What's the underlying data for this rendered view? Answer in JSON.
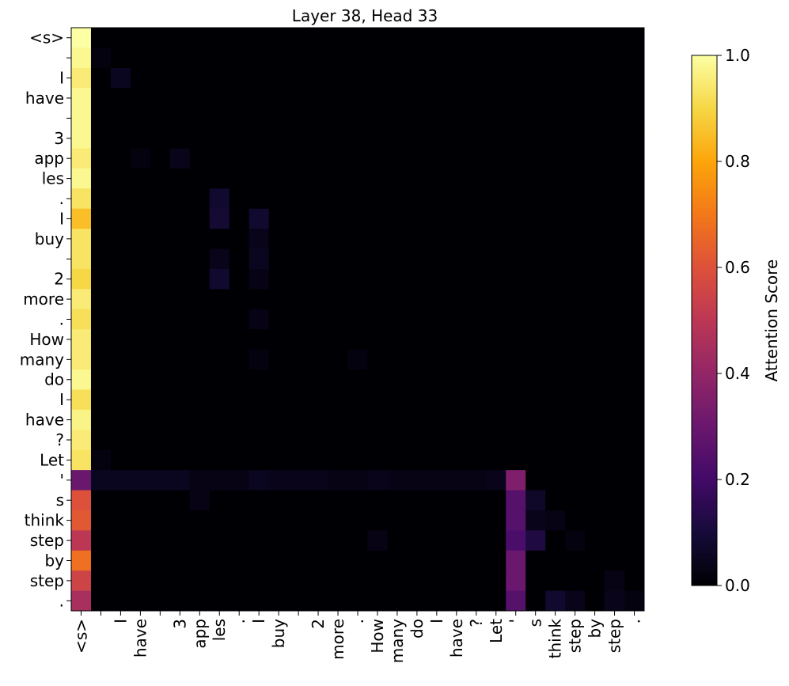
{
  "chart_data": {
    "type": "heatmap",
    "title": "Layer 38, Head 33",
    "x_labels": [
      "<s>",
      null,
      "I",
      "have",
      null,
      "3",
      "app",
      "les",
      ".",
      "I",
      "buy",
      null,
      "2",
      "more",
      ".",
      "How",
      "many",
      "do",
      "I",
      "have",
      "?",
      "Let",
      "'",
      "s",
      "think",
      "step",
      "by",
      "step",
      "."
    ],
    "y_labels": [
      "<s>",
      null,
      "I",
      "have",
      null,
      "3",
      "app",
      "les",
      ".",
      "I",
      "buy",
      null,
      "2",
      "more",
      ".",
      "How",
      "many",
      "do",
      "I",
      "have",
      "?",
      "Let",
      "'",
      "s",
      "think",
      "step",
      "by",
      "step",
      "."
    ],
    "colormap": "inferno",
    "colorbar_label": "Attention Score",
    "clim": [
      0,
      1
    ],
    "cticks": [
      {
        "value": 0,
        "label": "0.0"
      },
      {
        "value": 0.2,
        "label": "0.2"
      },
      {
        "value": 0.4,
        "label": "0.4"
      },
      {
        "value": 0.6,
        "label": "0.6"
      },
      {
        "value": 0.8,
        "label": "0.8"
      },
      {
        "value": 1,
        "label": "1.0"
      }
    ],
    "values": [
      [
        1.0,
        0,
        0,
        0,
        0,
        0,
        0,
        0,
        0,
        0,
        0,
        0,
        0,
        0,
        0,
        0,
        0,
        0,
        0,
        0,
        0,
        0,
        0,
        0,
        0,
        0,
        0,
        0,
        0
      ],
      [
        0.98,
        0.02,
        0,
        0,
        0,
        0,
        0,
        0,
        0,
        0,
        0,
        0,
        0,
        0,
        0,
        0,
        0,
        0,
        0,
        0,
        0,
        0,
        0,
        0,
        0,
        0,
        0,
        0,
        0
      ],
      [
        0.95,
        0,
        0.05,
        0,
        0,
        0,
        0,
        0,
        0,
        0,
        0,
        0,
        0,
        0,
        0,
        0,
        0,
        0,
        0,
        0,
        0,
        0,
        0,
        0,
        0,
        0,
        0,
        0,
        0
      ],
      [
        0.98,
        0,
        0,
        0,
        0,
        0,
        0,
        0,
        0,
        0,
        0,
        0,
        0,
        0,
        0,
        0,
        0,
        0,
        0,
        0,
        0,
        0,
        0,
        0,
        0,
        0,
        0,
        0,
        0
      ],
      [
        0.98,
        0,
        0,
        0,
        0,
        0,
        0,
        0,
        0,
        0,
        0,
        0,
        0,
        0,
        0,
        0,
        0,
        0,
        0,
        0,
        0,
        0,
        0,
        0,
        0,
        0,
        0,
        0,
        0
      ],
      [
        0.98,
        0,
        0,
        0,
        0,
        0,
        0,
        0,
        0,
        0,
        0,
        0,
        0,
        0,
        0,
        0,
        0,
        0,
        0,
        0,
        0,
        0,
        0,
        0,
        0,
        0,
        0,
        0,
        0
      ],
      [
        0.95,
        0,
        0,
        0.02,
        0,
        0.04,
        0,
        0,
        0,
        0,
        0,
        0,
        0,
        0,
        0,
        0,
        0,
        0,
        0,
        0,
        0,
        0,
        0,
        0,
        0,
        0,
        0,
        0,
        0
      ],
      [
        0.98,
        0,
        0,
        0,
        0,
        0,
        0,
        0,
        0,
        0,
        0,
        0,
        0,
        0,
        0,
        0,
        0,
        0,
        0,
        0,
        0,
        0,
        0,
        0,
        0,
        0,
        0,
        0,
        0
      ],
      [
        0.93,
        0,
        0,
        0,
        0,
        0,
        0,
        0.08,
        0,
        0,
        0,
        0,
        0,
        0,
        0,
        0,
        0,
        0,
        0,
        0,
        0,
        0,
        0,
        0,
        0,
        0,
        0,
        0,
        0
      ],
      [
        0.85,
        0,
        0,
        0,
        0,
        0,
        0,
        0.09,
        0,
        0.08,
        0,
        0,
        0,
        0,
        0,
        0,
        0,
        0,
        0,
        0,
        0,
        0,
        0,
        0,
        0,
        0,
        0,
        0,
        0
      ],
      [
        0.93,
        0,
        0,
        0,
        0,
        0,
        0,
        0,
        0,
        0.04,
        0,
        0,
        0,
        0,
        0,
        0,
        0,
        0,
        0,
        0,
        0,
        0,
        0,
        0,
        0,
        0,
        0,
        0,
        0
      ],
      [
        0.93,
        0,
        0,
        0,
        0,
        0,
        0,
        0.04,
        0,
        0.05,
        0,
        0,
        0,
        0,
        0,
        0,
        0,
        0,
        0,
        0,
        0,
        0,
        0,
        0,
        0,
        0,
        0,
        0,
        0
      ],
      [
        0.9,
        0,
        0,
        0,
        0,
        0,
        0,
        0.08,
        0,
        0.03,
        0,
        0,
        0,
        0,
        0,
        0,
        0,
        0,
        0,
        0,
        0,
        0,
        0,
        0,
        0,
        0,
        0,
        0,
        0
      ],
      [
        0.95,
        0,
        0,
        0,
        0,
        0,
        0,
        0,
        0,
        0,
        0,
        0,
        0,
        0,
        0,
        0,
        0,
        0,
        0,
        0,
        0,
        0,
        0,
        0,
        0,
        0,
        0,
        0,
        0
      ],
      [
        0.92,
        0,
        0,
        0,
        0,
        0,
        0,
        0,
        0,
        0.03,
        0,
        0,
        0,
        0,
        0,
        0,
        0,
        0,
        0,
        0,
        0,
        0,
        0,
        0,
        0,
        0,
        0,
        0,
        0
      ],
      [
        0.95,
        0,
        0,
        0,
        0,
        0,
        0,
        0,
        0,
        0,
        0,
        0,
        0,
        0,
        0,
        0,
        0,
        0,
        0,
        0,
        0,
        0,
        0,
        0,
        0,
        0,
        0,
        0,
        0
      ],
      [
        0.95,
        0,
        0,
        0,
        0,
        0,
        0,
        0,
        0,
        0.02,
        0,
        0,
        0,
        0,
        0.02,
        0,
        0,
        0,
        0,
        0,
        0,
        0,
        0,
        0,
        0,
        0,
        0,
        0,
        0
      ],
      [
        0.98,
        0,
        0,
        0,
        0,
        0,
        0,
        0,
        0,
        0,
        0,
        0,
        0,
        0,
        0,
        0,
        0,
        0,
        0,
        0,
        0,
        0,
        0,
        0,
        0,
        0,
        0,
        0,
        0
      ],
      [
        0.92,
        0,
        0,
        0,
        0,
        0,
        0,
        0,
        0,
        0,
        0,
        0,
        0,
        0,
        0,
        0,
        0,
        0,
        0,
        0,
        0,
        0,
        0,
        0,
        0,
        0,
        0,
        0,
        0
      ],
      [
        0.97,
        0,
        0,
        0,
        0,
        0,
        0,
        0,
        0,
        0,
        0,
        0,
        0,
        0,
        0,
        0,
        0,
        0,
        0,
        0,
        0,
        0,
        0,
        0,
        0,
        0,
        0,
        0,
        0
      ],
      [
        0.95,
        0,
        0,
        0,
        0,
        0,
        0,
        0,
        0,
        0,
        0,
        0,
        0,
        0,
        0,
        0,
        0,
        0,
        0,
        0,
        0,
        0,
        0,
        0,
        0,
        0,
        0,
        0,
        0
      ],
      [
        0.93,
        0.02,
        0,
        0,
        0,
        0,
        0,
        0,
        0,
        0,
        0,
        0,
        0,
        0,
        0,
        0,
        0,
        0,
        0,
        0,
        0,
        0,
        0,
        0,
        0,
        0,
        0,
        0,
        0
      ],
      [
        0.3,
        0.05,
        0.05,
        0.05,
        0.05,
        0.05,
        0.03,
        0.03,
        0.03,
        0.05,
        0.04,
        0.04,
        0.04,
        0.03,
        0.03,
        0.04,
        0.03,
        0.03,
        0.03,
        0.03,
        0.03,
        0.04,
        0.35,
        0,
        0,
        0,
        0,
        0,
        0
      ],
      [
        0.6,
        0,
        0,
        0,
        0,
        0,
        0.03,
        0,
        0,
        0,
        0,
        0,
        0,
        0,
        0,
        0,
        0,
        0,
        0,
        0,
        0,
        0,
        0.25,
        0.07,
        0,
        0,
        0,
        0,
        0
      ],
      [
        0.62,
        0,
        0,
        0,
        0,
        0,
        0,
        0,
        0,
        0,
        0,
        0,
        0,
        0,
        0,
        0,
        0,
        0,
        0,
        0,
        0,
        0,
        0.25,
        0.04,
        0.03,
        0,
        0,
        0,
        0
      ],
      [
        0.5,
        0,
        0,
        0,
        0,
        0,
        0,
        0,
        0,
        0,
        0,
        0,
        0,
        0,
        0,
        0.03,
        0,
        0,
        0,
        0,
        0,
        0,
        0.22,
        0.12,
        0,
        0.02,
        0,
        0,
        0
      ],
      [
        0.68,
        0,
        0,
        0,
        0,
        0,
        0,
        0,
        0,
        0,
        0,
        0,
        0,
        0,
        0,
        0,
        0,
        0,
        0,
        0,
        0,
        0,
        0.3,
        0,
        0,
        0,
        0,
        0,
        0
      ],
      [
        0.55,
        0,
        0,
        0,
        0,
        0,
        0,
        0,
        0,
        0,
        0,
        0,
        0,
        0,
        0,
        0,
        0,
        0,
        0,
        0,
        0,
        0,
        0.3,
        0,
        0,
        0,
        0,
        0.03,
        0
      ],
      [
        0.45,
        0,
        0,
        0,
        0,
        0,
        0,
        0,
        0,
        0,
        0,
        0,
        0,
        0,
        0,
        0,
        0,
        0,
        0,
        0,
        0,
        0,
        0.25,
        0,
        0.08,
        0.04,
        0,
        0.04,
        0.02
      ]
    ]
  }
}
